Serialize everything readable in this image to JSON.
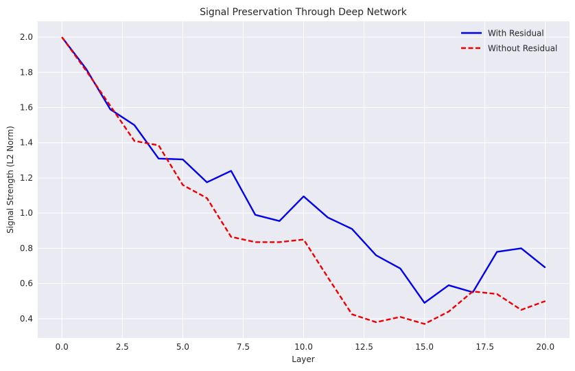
{
  "chart_data": {
    "type": "line",
    "title": "Signal Preservation Through Deep Network",
    "xlabel": "Layer",
    "ylabel": "Signal Strength (L2 Norm)",
    "xlim": [
      -1.0,
      21.0
    ],
    "ylim": [
      0.29,
      2.09
    ],
    "xticks": [
      0.0,
      2.5,
      5.0,
      7.5,
      10.0,
      12.5,
      15.0,
      17.5,
      20.0
    ],
    "xtick_labels": [
      "0.0",
      "2.5",
      "5.0",
      "7.5",
      "10.0",
      "12.5",
      "15.0",
      "17.5",
      "20.0"
    ],
    "yticks": [
      0.4,
      0.6,
      0.8,
      1.0,
      1.2,
      1.4,
      1.6,
      1.8,
      2.0
    ],
    "ytick_labels": [
      "0.4",
      "0.6",
      "0.8",
      "1.0",
      "1.2",
      "1.4",
      "1.6",
      "1.8",
      "2.0"
    ],
    "grid": true,
    "legend_position": "top-right",
    "x": [
      0,
      1,
      2,
      3,
      4,
      5,
      6,
      7,
      8,
      9,
      10,
      11,
      12,
      13,
      14,
      15,
      16,
      17,
      18,
      19,
      20
    ],
    "series": [
      {
        "name": "With Residual",
        "color": "#0000ee",
        "style": "solid",
        "values": [
          2.0,
          1.82,
          1.59,
          1.5,
          1.31,
          1.305,
          1.175,
          1.24,
          0.99,
          0.955,
          1.095,
          0.975,
          0.91,
          0.76,
          0.685,
          0.49,
          0.59,
          0.55,
          0.78,
          0.8,
          0.69
        ]
      },
      {
        "name": "Without Residual",
        "color": "#ee0000",
        "style": "dashed",
        "values": [
          2.0,
          1.81,
          1.61,
          1.41,
          1.385,
          1.16,
          1.085,
          0.865,
          0.835,
          0.835,
          0.85,
          0.635,
          0.425,
          0.38,
          0.41,
          0.37,
          0.44,
          0.555,
          0.54,
          0.45,
          0.5
        ]
      }
    ]
  }
}
